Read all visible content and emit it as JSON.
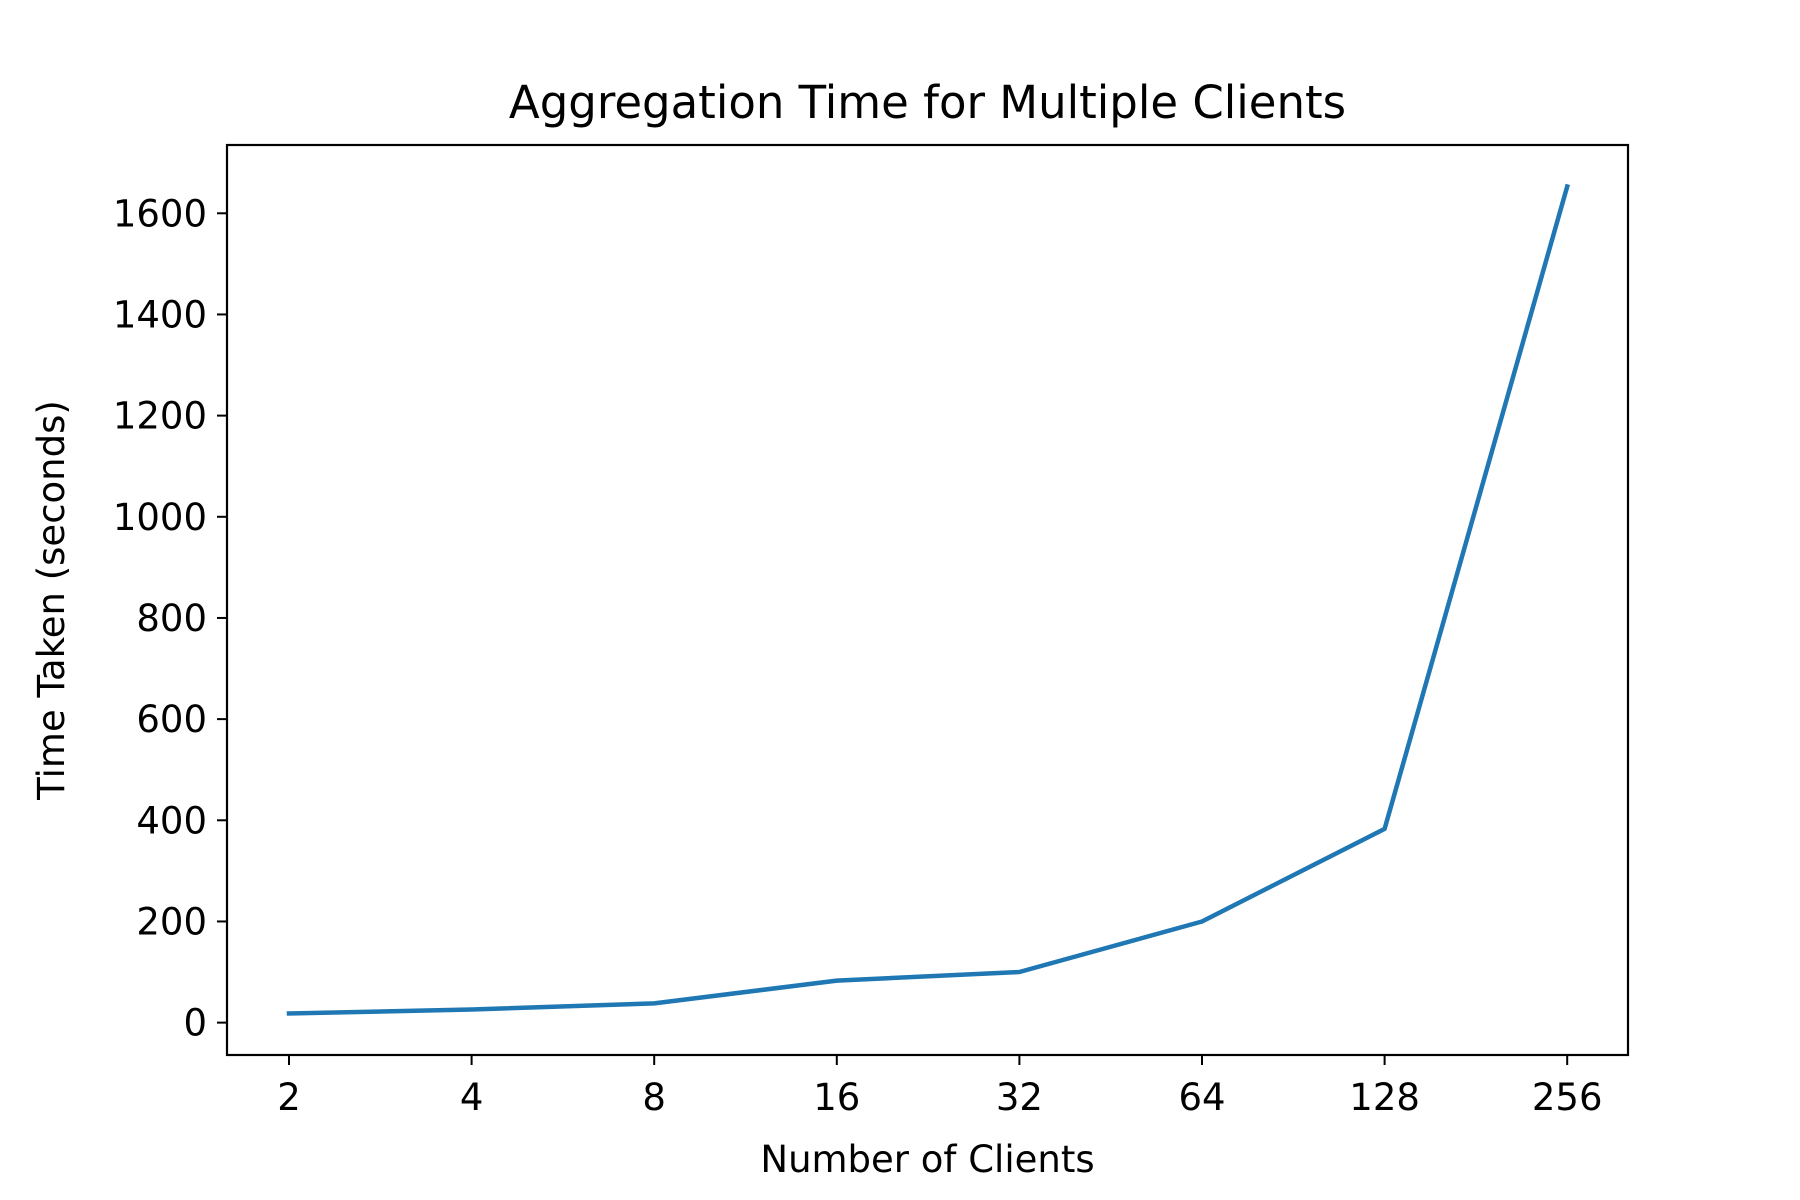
{
  "chart_data": {
    "type": "line",
    "title": "Aggregation Time for Multiple Clients",
    "xlabel": "Number of Clients",
    "ylabel": "Time Taken (seconds)",
    "categories": [
      "2",
      "4",
      "8",
      "16",
      "32",
      "64",
      "128",
      "256"
    ],
    "series": [
      {
        "name": "Aggregation Time",
        "color": "#1f77b4",
        "values": [
          18,
          26,
          38,
          83,
          100,
          200,
          383,
          1653
        ]
      }
    ],
    "ylim": [
      -64,
      1735
    ],
    "yticks": [
      0,
      200,
      400,
      600,
      800,
      1000,
      1200,
      1400,
      1600
    ],
    "ytick_labels": [
      "0",
      "200",
      "400",
      "600",
      "800",
      "1000",
      "1200",
      "1400",
      "1600"
    ],
    "grid": false,
    "legend": "none"
  }
}
